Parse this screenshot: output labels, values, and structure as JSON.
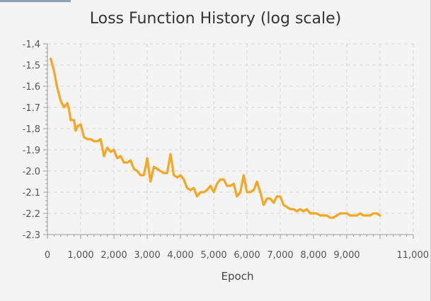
{
  "chart_data": {
    "type": "line",
    "title": "Loss Function History (log scale)",
    "xlabel": "Epoch",
    "ylabel": "",
    "xlim": [
      0,
      11000
    ],
    "ylim": [
      -2.3,
      -1.4
    ],
    "x_ticks": [
      0,
      1000,
      2000,
      3000,
      4000,
      5000,
      6000,
      7000,
      8000,
      9000,
      10000,
      11000
    ],
    "x_tick_labels": [
      "0",
      "1,000",
      "2,000",
      "3,000",
      "4,000",
      "5,000",
      "6,000",
      "7,000",
      "8,000",
      "9,000",
      "",
      "11,000"
    ],
    "y_ticks": [
      -1.4,
      -1.5,
      -1.6,
      -1.7,
      -1.8,
      -1.9,
      -2.0,
      -2.1,
      -2.2,
      -2.3
    ],
    "y_tick_labels": [
      "-1.4",
      "-1.5",
      "-1.6",
      "-1.7",
      "-1.8",
      "-1.9",
      "-2.0",
      "-2.1",
      "-2.2",
      "-2.3"
    ],
    "grid": true,
    "grid_style": "dashed",
    "series": [
      {
        "color": "#f5a623",
        "x": [
          100,
          200,
          300,
          400,
          500,
          600,
          650,
          700,
          800,
          850,
          900,
          1000,
          1100,
          1200,
          1300,
          1400,
          1500,
          1600,
          1700,
          1800,
          1900,
          2000,
          2100,
          2200,
          2300,
          2400,
          2500,
          2600,
          2700,
          2800,
          2900,
          3000,
          3100,
          3200,
          3300,
          3400,
          3500,
          3600,
          3700,
          3800,
          3900,
          4000,
          4100,
          4200,
          4300,
          4400,
          4500,
          4600,
          4700,
          4800,
          4900,
          5000,
          5100,
          5200,
          5300,
          5400,
          5500,
          5600,
          5700,
          5800,
          5900,
          6000,
          6100,
          6200,
          6300,
          6400,
          6500,
          6600,
          6700,
          6800,
          6900,
          7000,
          7100,
          7200,
          7300,
          7400,
          7500,
          7600,
          7700,
          7800,
          7900,
          8000,
          8100,
          8200,
          8300,
          8400,
          8500,
          8600,
          8700,
          8800,
          8900,
          9000,
          9100,
          9200,
          9300,
          9400,
          9500,
          9600,
          9700,
          9800,
          9900,
          10000
        ],
        "y": [
          -1.47,
          -1.53,
          -1.61,
          -1.67,
          -1.7,
          -1.68,
          -1.71,
          -1.76,
          -1.76,
          -1.81,
          -1.79,
          -1.78,
          -1.84,
          -1.85,
          -1.85,
          -1.86,
          -1.86,
          -1.85,
          -1.93,
          -1.89,
          -1.91,
          -1.9,
          -1.94,
          -1.93,
          -1.96,
          -1.96,
          -1.95,
          -1.99,
          -2.0,
          -2.02,
          -2.02,
          -1.94,
          -2.05,
          -1.98,
          -1.99,
          -2.0,
          -2.01,
          -2.01,
          -1.92,
          -2.02,
          -2.03,
          -2.02,
          -2.04,
          -2.08,
          -2.09,
          -2.08,
          -2.12,
          -2.1,
          -2.1,
          -2.09,
          -2.07,
          -2.1,
          -2.06,
          -2.04,
          -2.04,
          -2.07,
          -2.07,
          -2.06,
          -2.12,
          -2.1,
          -2.02,
          -2.1,
          -2.1,
          -2.09,
          -2.05,
          -2.1,
          -2.16,
          -2.13,
          -2.13,
          -2.15,
          -2.12,
          -2.12,
          -2.16,
          -2.17,
          -2.18,
          -2.18,
          -2.19,
          -2.18,
          -2.19,
          -2.18,
          -2.2,
          -2.2,
          -2.2,
          -2.21,
          -2.21,
          -2.21,
          -2.22,
          -2.22,
          -2.21,
          -2.2,
          -2.2,
          -2.2,
          -2.21,
          -2.21,
          -2.21,
          -2.2,
          -2.21,
          -2.21,
          -2.21,
          -2.2,
          -2.2,
          -2.21
        ]
      }
    ]
  }
}
